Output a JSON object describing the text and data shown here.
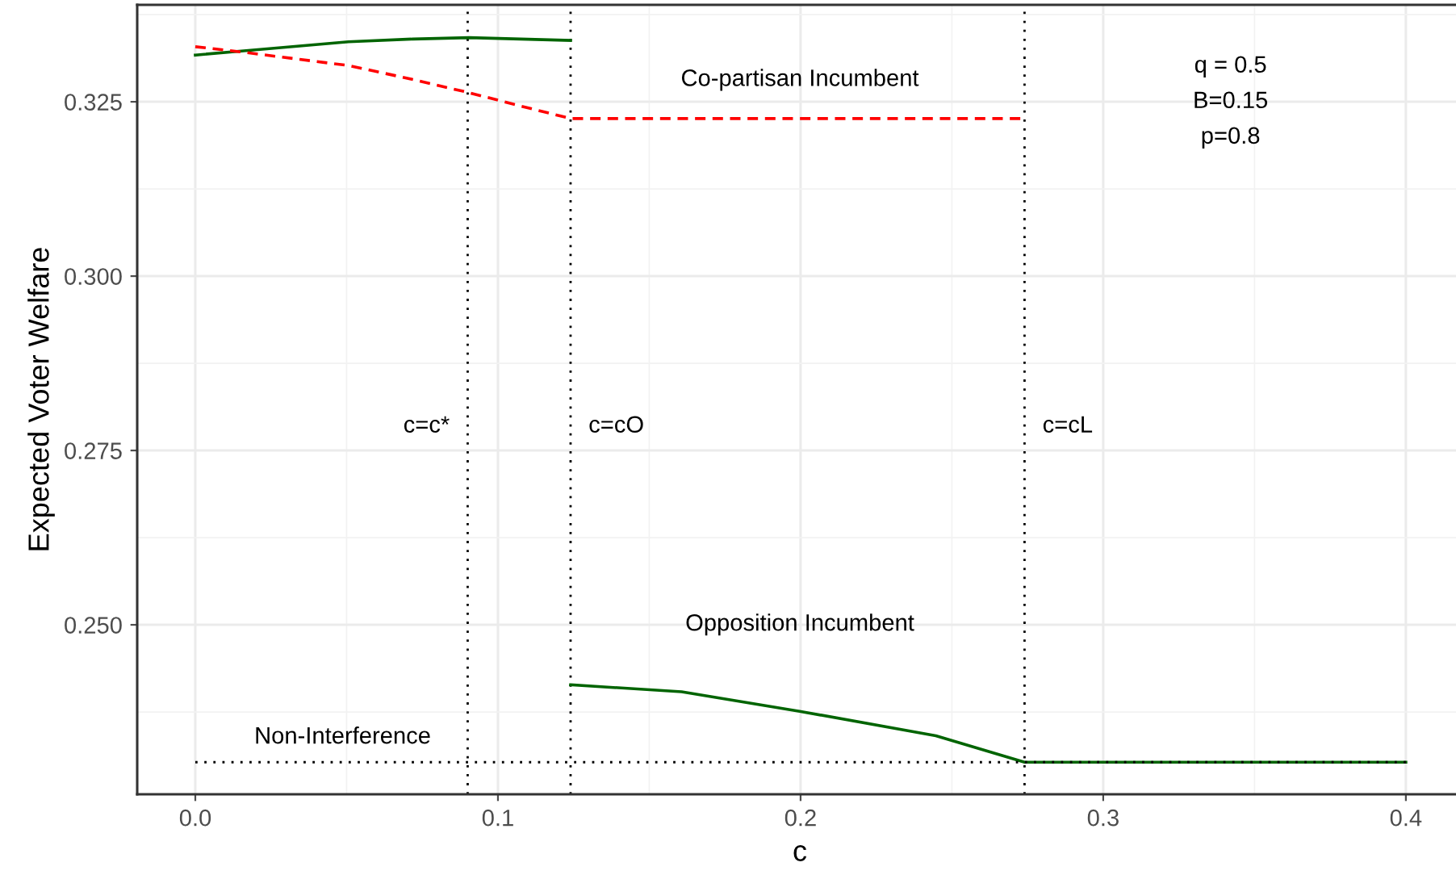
{
  "chart_data": {
    "type": "line",
    "xlabel": "c",
    "ylabel": "Expected Voter Welfare",
    "xlim": [
      -0.0192,
      0.4187
    ],
    "ylim": [
      0.2257,
      0.3389
    ],
    "xticks": [
      {
        "value": 0,
        "label": "0.0"
      },
      0.1,
      0.2,
      0.3,
      0.4
    ],
    "yticks": [
      {
        "value": 0.25,
        "label": "0.250"
      },
      0.275,
      {
        "value": 0.3,
        "label": "0.300"
      },
      0.325
    ],
    "grid": true,
    "legend": false,
    "series": [
      {
        "color": "#006400",
        "line_style": "solid",
        "x": [
          0,
          0.016,
          0.0506,
          0.0719,
          0.0905,
          0.124
        ],
        "values": [
          0.3317,
          0.3323,
          0.3336,
          0.334,
          0.3342,
          0.3338
        ]
      },
      {
        "name": "Co-partisan Incumbent",
        "color": "#ff0000",
        "line_style": "dashed",
        "x": [
          0,
          0.016,
          0.0506,
          0.0719,
          0.0905,
          0.1065,
          0.124,
          0.274
        ],
        "values": [
          0.3329,
          0.3321,
          0.3302,
          0.3282,
          0.3263,
          0.3245,
          0.3226,
          0.3226
        ]
      },
      {
        "name": "Opposition Incumbent",
        "color": "#006400",
        "line_style": "solid",
        "x": [
          0.124,
          0.1607,
          0.1997,
          0.2447,
          0.274,
          0.4
        ],
        "values": [
          0.2414,
          0.2404,
          0.2376,
          0.2341,
          0.2303,
          0.2303
        ]
      },
      {
        "name": "Non-Interference",
        "color": "#000000",
        "line_style": "dotted",
        "x": [
          0,
          0.4
        ],
        "values": [
          0.2303,
          0.2303
        ]
      }
    ],
    "ref_lines": [
      {
        "axis": "x",
        "value": 0.09,
        "label": "c=c*",
        "color": "#000000",
        "line_style": "dotted"
      },
      {
        "axis": "x",
        "value": 0.124,
        "label": "c=cO",
        "color": "#000000",
        "line_style": "dotted"
      },
      {
        "axis": "x",
        "value": 0.274,
        "label": "c=cL",
        "color": "#000000",
        "line_style": "dotted"
      }
    ],
    "annotations": [
      "q = 0.5",
      "B=0.15",
      "p=0.8"
    ]
  }
}
